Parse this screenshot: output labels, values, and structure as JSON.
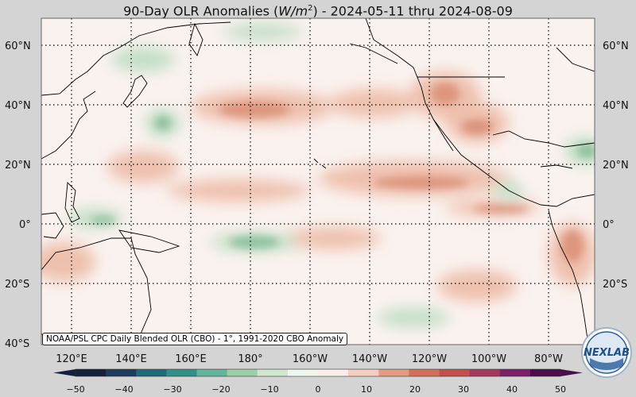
{
  "title": {
    "prefix": "90-Day OLR Anomalies (",
    "unit_base": "W/m",
    "unit_exp": "2",
    "suffix": ") - 2024-05-11 thru 2024-08-09"
  },
  "credit": "NOAA/PSL CPC Daily Blended OLR (CBO) - 1°, 1991-2020 CBO Anomaly",
  "logo_text": "NEXLAB",
  "lat_labels_left": [
    "60°N",
    "40°N",
    "20°N",
    "0°",
    "20°S",
    "40°S"
  ],
  "lat_labels_right": [
    "60°N",
    "40°N",
    "20°N",
    "0°",
    "20°S"
  ],
  "lon_labels": [
    "120°E",
    "140°E",
    "160°E",
    "180°",
    "160°W",
    "140°W",
    "120°W",
    "100°W",
    "80°W"
  ],
  "colorbar": {
    "ticks": [
      "−50",
      "−40",
      "−30",
      "−20",
      "−10",
      "0",
      "10",
      "20",
      "30",
      "40",
      "50"
    ],
    "colors": [
      "#14213d",
      "#1d3b5c",
      "#1f6a78",
      "#2e9089",
      "#62b49b",
      "#9ccfa9",
      "#cfe6cf",
      "#eef6ee",
      "#fbeee9",
      "#f3cdbd",
      "#e59b83",
      "#d4705a",
      "#c2504d",
      "#a33a5e",
      "#7b2069",
      "#4a0f4a"
    ]
  }
}
